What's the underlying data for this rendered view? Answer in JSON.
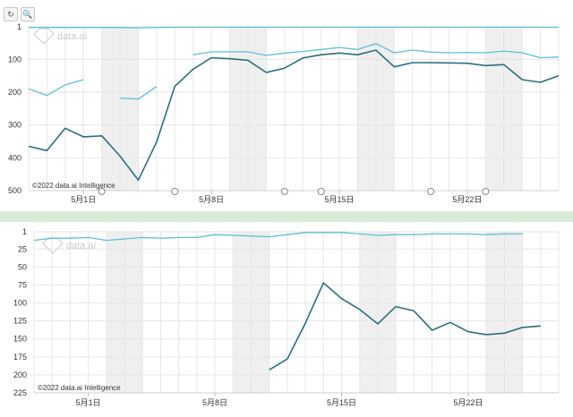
{
  "toolbar": {
    "reset_icon": "reset-icon",
    "zoom_icon": "zoom-icon"
  },
  "colors": {
    "dark_line": "#2a6f7e",
    "light_line": "#5bc0d8",
    "weekend": "#efefef",
    "grid": "#e6e6e6",
    "band": "#d6ecd6"
  },
  "watermark": "data.ai",
  "chart_data": [
    {
      "type": "line",
      "title": "",
      "y_reversed": true,
      "ylim": [
        1,
        500
      ],
      "y_ticks": [
        "1",
        "100",
        "200",
        "300",
        "400",
        "500"
      ],
      "x_tick_labels": [
        {
          "label": "5月1日",
          "day": 3
        },
        {
          "label": "5月8日",
          "day": 10
        },
        {
          "label": "5月15日",
          "day": 17
        },
        {
          "label": "5月22日",
          "day": 24
        }
      ],
      "days": 29,
      "weekends": [
        [
          4,
          6
        ],
        [
          11,
          13
        ],
        [
          18,
          20
        ],
        [
          25,
          27
        ]
      ],
      "annotation_days": [
        4,
        8,
        14,
        16,
        22,
        25
      ],
      "copyright": "©2022 data.ai Intelligence",
      "series": [
        {
          "color": "dark",
          "values": [
            365,
            378,
            310,
            336,
            333,
            395,
            468,
            352,
            182,
            130,
            95,
            98,
            103,
            140,
            127,
            96,
            86,
            81,
            86,
            72,
            123,
            110,
            110,
            111,
            112,
            119,
            116,
            162,
            170,
            150
          ]
        },
        {
          "color": "light",
          "values": [
            3,
            3,
            3,
            3,
            3,
            3,
            4,
            3,
            2,
            2,
            2,
            2,
            2,
            2,
            2,
            2,
            2,
            2,
            2,
            2,
            2,
            2,
            2,
            2,
            2,
            2,
            2,
            2,
            2,
            2
          ]
        },
        {
          "color": "light",
          "values": [
            190,
            210,
            178,
            162,
            null,
            218,
            221,
            183,
            null,
            86,
            77,
            77,
            77,
            88,
            81,
            76,
            70,
            64,
            70,
            52,
            80,
            72,
            78,
            80,
            79,
            80,
            75,
            80,
            95,
            93
          ]
        }
      ]
    },
    {
      "type": "line",
      "title": "",
      "y_reversed": true,
      "ylim": [
        1,
        225
      ],
      "y_ticks": [
        "1",
        "25",
        "50",
        "75",
        "100",
        "125",
        "150",
        "175",
        "200",
        "225"
      ],
      "x_tick_labels": [
        {
          "label": "5月1日",
          "day": 3
        },
        {
          "label": "5月8日",
          "day": 10
        },
        {
          "label": "5月15日",
          "day": 17
        },
        {
          "label": "5月22日",
          "day": 24
        }
      ],
      "days": 29,
      "weekends": [
        [
          4,
          6
        ],
        [
          11,
          13
        ],
        [
          18,
          20
        ],
        [
          25,
          27
        ]
      ],
      "annotation_days": [],
      "copyright": "©2022 data.ai Intelligence",
      "series": [
        {
          "color": "dark",
          "values": [
            null,
            null,
            null,
            null,
            null,
            null,
            null,
            null,
            null,
            null,
            null,
            null,
            null,
            193,
            178,
            128,
            72,
            94,
            109,
            129,
            105,
            111,
            138,
            127,
            140,
            144,
            142,
            134,
            132,
            null
          ]
        },
        {
          "color": "light",
          "values": [
            13,
            10,
            10,
            9,
            13,
            11,
            9,
            10,
            9,
            9,
            5,
            6,
            7,
            8,
            5,
            2,
            2,
            2,
            4,
            6,
            5,
            5,
            4,
            4,
            4,
            5,
            4,
            4,
            null,
            null
          ]
        }
      ]
    }
  ]
}
